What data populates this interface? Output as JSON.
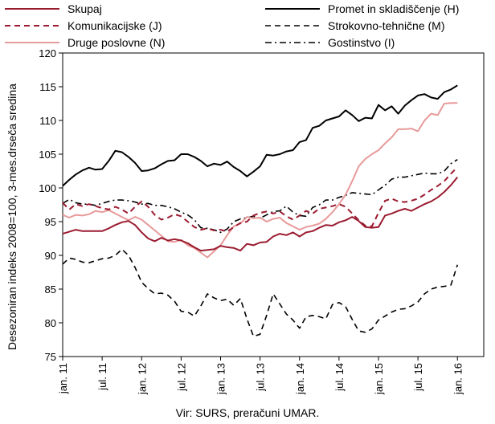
{
  "chart_data": {
    "type": "line",
    "title": "",
    "ylabel": "Desezoniran indeks 2008=100, 3-mes.drseča sredina",
    "xlabel": "",
    "ylim": [
      75,
      120
    ],
    "yticks": [
      75,
      80,
      85,
      90,
      95,
      100,
      105,
      110,
      115,
      120
    ],
    "x_tick_labels": [
      "jan. 11",
      "jul. 11",
      "jan. 12",
      "jul. 12",
      "jan. 13",
      "jul. 13",
      "jan. 14",
      "jul. 14",
      "jan. 15",
      "jul. 15",
      "jan. 16"
    ],
    "x_tick_positions": [
      0,
      6,
      12,
      18,
      24,
      30,
      36,
      42,
      48,
      54,
      60
    ],
    "x_unit": "months since jan. 11",
    "grid": false,
    "legend_position": "top",
    "series": [
      {
        "name": "Skupaj",
        "color": "#9b1b30",
        "style": "solid",
        "width": 2,
        "values": [
          93.2,
          93.5,
          93.8,
          93.6,
          93.6,
          93.6,
          93.6,
          94.0,
          94.5,
          94.9,
          95.1,
          94.5,
          93.4,
          92.5,
          92.1,
          92.6,
          92.2,
          92.4,
          92.2,
          91.8,
          91.2,
          90.7,
          90.8,
          90.9,
          91.4,
          91.2,
          91.1,
          90.7,
          91.7,
          91.5,
          91.9,
          92.0,
          92.8,
          93.2,
          93.0,
          93.4,
          92.8,
          93.4,
          93.6,
          94.1,
          94.5,
          94.4,
          94.9,
          95.2,
          95.7,
          95.1,
          94.2,
          94.1,
          94.2,
          95.9,
          96.2,
          96.6,
          96.9,
          96.6,
          97.1,
          97.6,
          98.0,
          98.6,
          99.4,
          100.4,
          101.6
        ]
      },
      {
        "name": "Promet in skladiščenje (H)",
        "color": "#000000",
        "style": "solid",
        "width": 2,
        "values": [
          100.3,
          101.2,
          102.0,
          102.6,
          103.0,
          102.7,
          102.8,
          104.0,
          105.5,
          105.3,
          104.6,
          103.7,
          102.5,
          102.6,
          102.9,
          103.5,
          104.0,
          104.1,
          105.0,
          105.0,
          104.6,
          104.0,
          103.2,
          103.6,
          103.4,
          103.9,
          103.1,
          102.5,
          101.7,
          102.4,
          103.2,
          104.9,
          104.8,
          105.0,
          105.4,
          105.6,
          106.8,
          107.1,
          108.9,
          109.2,
          110.0,
          110.3,
          110.6,
          111.5,
          110.8,
          109.9,
          110.4,
          110.3,
          112.3,
          111.5,
          112.1,
          111.0,
          112.2,
          113.0,
          113.7,
          113.9,
          113.4,
          113.2,
          114.2,
          114.6,
          115.2
        ]
      },
      {
        "name": "Komunikacijske (J)",
        "color": "#9b1b30",
        "style": "dashed",
        "width": 2,
        "values": [
          97.8,
          96.8,
          97.6,
          97.3,
          97.6,
          97.3,
          97.0,
          96.8,
          97.2,
          96.8,
          96.2,
          97.2,
          98.0,
          97.2,
          96.0,
          95.3,
          95.6,
          96.1,
          95.8,
          95.0,
          94.2,
          93.8,
          94.0,
          93.7,
          93.8,
          93.5,
          94.2,
          94.8,
          95.0,
          95.9,
          96.3,
          96.5,
          96.2,
          96.5,
          95.8,
          95.3,
          95.9,
          96.6,
          96.2,
          96.9,
          97.1,
          97.3,
          97.6,
          97.2,
          96.2,
          95.2,
          94.4,
          94.3,
          96.3,
          98.1,
          98.4,
          98.0,
          97.9,
          98.1,
          98.4,
          99.0,
          99.7,
          100.3,
          101.0,
          102.1,
          103.1
        ]
      },
      {
        "name": "Strokovno-tehnične (M)",
        "color": "#000000",
        "style": "dashed",
        "width": 1.6,
        "values": [
          88.7,
          89.6,
          89.4,
          89.0,
          88.9,
          89.2,
          89.5,
          89.6,
          90.0,
          90.9,
          90.0,
          88.2,
          86.0,
          85.1,
          84.3,
          84.4,
          84.1,
          83.2,
          81.7,
          81.6,
          81.0,
          82.5,
          84.3,
          83.7,
          83.3,
          83.5,
          82.6,
          83.6,
          80.6,
          78.0,
          78.3,
          81.1,
          84.3,
          82.8,
          81.3,
          80.4,
          79.2,
          80.9,
          81.1,
          80.9,
          80.6,
          82.7,
          83.0,
          82.4,
          80.5,
          78.8,
          78.6,
          79.1,
          80.4,
          81.0,
          81.6,
          82.0,
          82.1,
          82.5,
          83.1,
          84.3,
          85.0,
          85.3,
          85.4,
          85.6,
          88.6
        ]
      },
      {
        "name": "Druge poslovne (N)",
        "color": "#e89a9a",
        "style": "solid",
        "width": 2,
        "values": [
          96.0,
          95.6,
          96.0,
          95.9,
          96.1,
          96.6,
          96.4,
          96.7,
          96.2,
          95.7,
          95.2,
          95.7,
          95.3,
          94.5,
          93.7,
          92.9,
          92.1,
          92.0,
          92.3,
          91.5,
          91.1,
          90.4,
          89.7,
          90.6,
          91.5,
          93.0,
          94.3,
          94.7,
          95.7,
          95.5,
          95.6,
          95.0,
          95.4,
          95.6,
          94.8,
          94.3,
          93.8,
          94.2,
          94.4,
          94.7,
          95.4,
          96.4,
          97.6,
          99.0,
          101.0,
          103.2,
          104.3,
          105.0,
          105.6,
          106.6,
          107.5,
          108.7,
          108.7,
          108.8,
          108.4,
          110.0,
          111.0,
          110.8,
          112.5,
          112.6,
          112.6
        ]
      },
      {
        "name": "Gostinstvo (I)",
        "color": "#000000",
        "style": "dashdot",
        "width": 1.6,
        "values": [
          97.7,
          98.3,
          97.8,
          97.6,
          97.6,
          97.4,
          97.7,
          98.0,
          98.2,
          98.2,
          98.1,
          97.9,
          97.6,
          97.7,
          97.4,
          97.4,
          97.2,
          96.9,
          96.4,
          96.0,
          95.3,
          94.1,
          94.0,
          93.8,
          93.4,
          93.9,
          95.0,
          95.4,
          95.6,
          95.8,
          95.5,
          96.0,
          96.5,
          96.6,
          97.3,
          96.4,
          95.9,
          95.8,
          97.1,
          97.5,
          98.2,
          98.2,
          98.6,
          98.9,
          99.3,
          99.2,
          99.1,
          99.0,
          99.7,
          100.4,
          101.3,
          101.6,
          101.6,
          101.8,
          102.0,
          102.2,
          102.1,
          102.1,
          102.5,
          103.6,
          104.2
        ]
      }
    ]
  },
  "source_text": "Vir:  SURS, preračuni UMAR."
}
